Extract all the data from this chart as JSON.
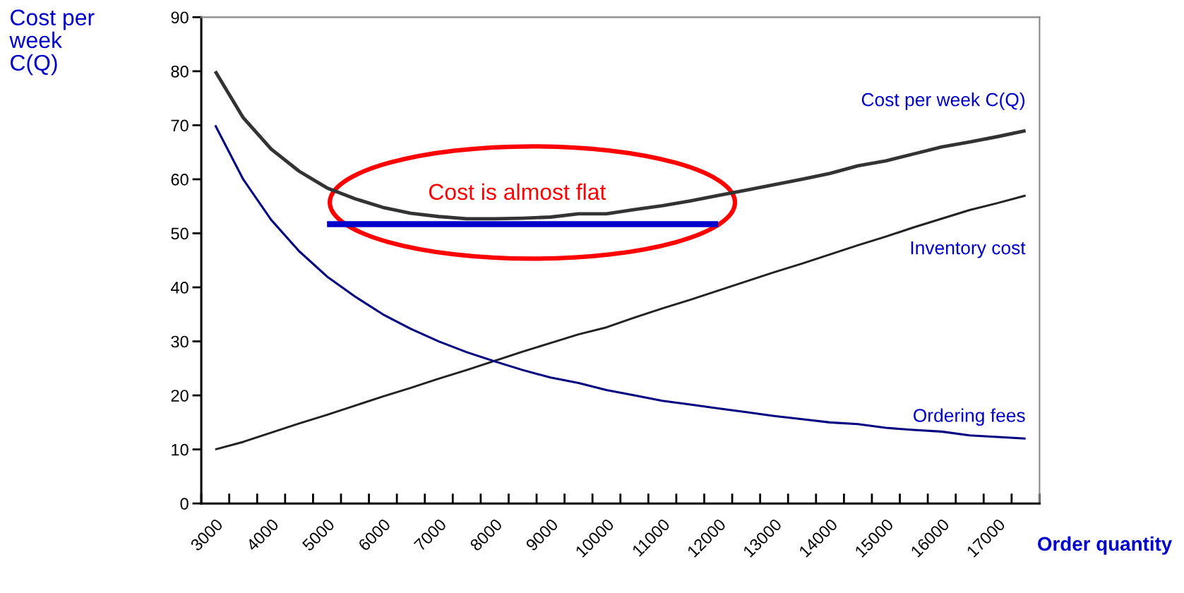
{
  "chart_data": {
    "type": "line",
    "categories": [
      "3000",
      null,
      "4000",
      null,
      "5000",
      null,
      "6000",
      null,
      "7000",
      null,
      "8000",
      null,
      "9000",
      null,
      "10000",
      null,
      "11000",
      null,
      "12000",
      null,
      "13000",
      null,
      "14000",
      null,
      "15000",
      null,
      "16000",
      null,
      "17000",
      null
    ],
    "series": [
      {
        "name": "Cost per week C(Q)",
        "color": "#333333",
        "values": [
          80,
          71.4,
          65.6,
          61.5,
          58.4,
          56.4,
          54.8,
          53.7,
          53.1,
          52.7,
          52.7,
          52.8,
          53.0,
          53.6,
          53.6,
          54.4,
          55.1,
          56.0,
          57.0,
          58.0,
          59.0,
          60.0,
          61.1,
          62.5,
          63.4,
          64.7,
          66.0,
          66.9,
          67.9,
          69.0
        ]
      },
      {
        "name": "Inventory cost",
        "color": "#222222",
        "values": [
          10,
          11.4,
          13.1,
          14.8,
          16.4,
          18.1,
          19.8,
          21.4,
          23.1,
          24.7,
          26.4,
          28.1,
          29.7,
          31.3,
          32.6,
          34.4,
          36.1,
          37.7,
          39.4,
          41.1,
          42.8,
          44.4,
          46.1,
          47.8,
          49.4,
          51.1,
          52.7,
          54.3,
          55.6,
          57
        ]
      },
      {
        "name": "Ordering fees",
        "color": "#000080",
        "values": [
          70,
          60,
          52.5,
          46.7,
          42,
          38.3,
          35,
          32.3,
          30,
          28,
          26.3,
          24.7,
          23.3,
          22.3,
          21,
          20,
          19,
          18.3,
          17.6,
          16.9,
          16.2,
          15.6,
          15,
          14.7,
          14,
          13.6,
          13.3,
          12.6,
          12.3,
          12
        ]
      },
      {
        "color": "#0000cc",
        "values": [
          null,
          null,
          null,
          null,
          51.7,
          51.7,
          51.7,
          51.7,
          51.7,
          51.7,
          51.7,
          51.7,
          51.7,
          51.7,
          51.7,
          51.7,
          51.7,
          51.7,
          51.7,
          null,
          null,
          null,
          null,
          null,
          null,
          null,
          null,
          null,
          null,
          null
        ]
      }
    ],
    "ylabel": "Cost per\nweek\nC(Q)",
    "xlabel": "Order quantity",
    "ylim": [
      0,
      90
    ],
    "yticks": [
      0,
      10,
      20,
      30,
      40,
      50,
      60,
      70,
      80,
      90
    ],
    "annotations": [
      "Cost is almost flat"
    ],
    "grid": false,
    "legend": false,
    "marker": "none",
    "line_style": "solid"
  }
}
